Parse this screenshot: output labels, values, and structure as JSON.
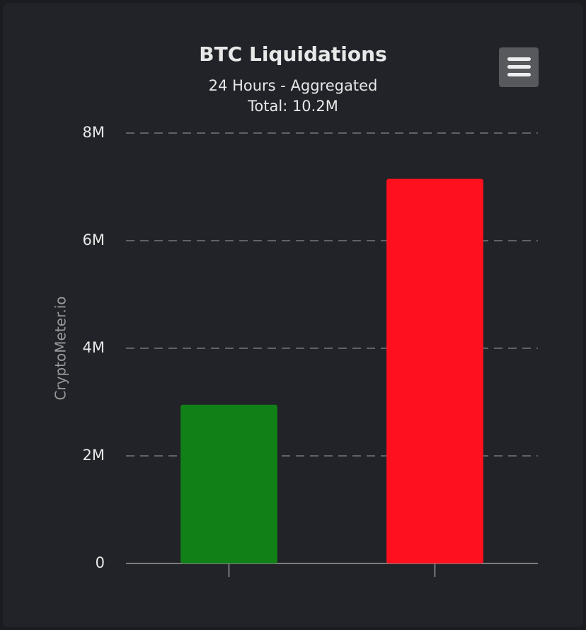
{
  "chart_data": {
    "type": "bar",
    "title": "BTC Liquidations",
    "subtitle": [
      "24 Hours - Aggregated",
      "Total: 10.2M"
    ],
    "y_label": "CryptoMeter.io",
    "categories": [
      null,
      null
    ],
    "values": [
      2950000,
      7150000
    ],
    "colors": [
      "#118016",
      "#ff101f"
    ],
    "ylim": [
      0,
      8000000
    ],
    "yticks": [
      0,
      {
        "value": 2000000,
        "label": "2M"
      },
      {
        "value": 4000000,
        "label": "4M"
      },
      {
        "value": 6000000,
        "label": "6M"
      },
      {
        "value": 8000000,
        "label": "8M"
      }
    ],
    "grid": true
  }
}
